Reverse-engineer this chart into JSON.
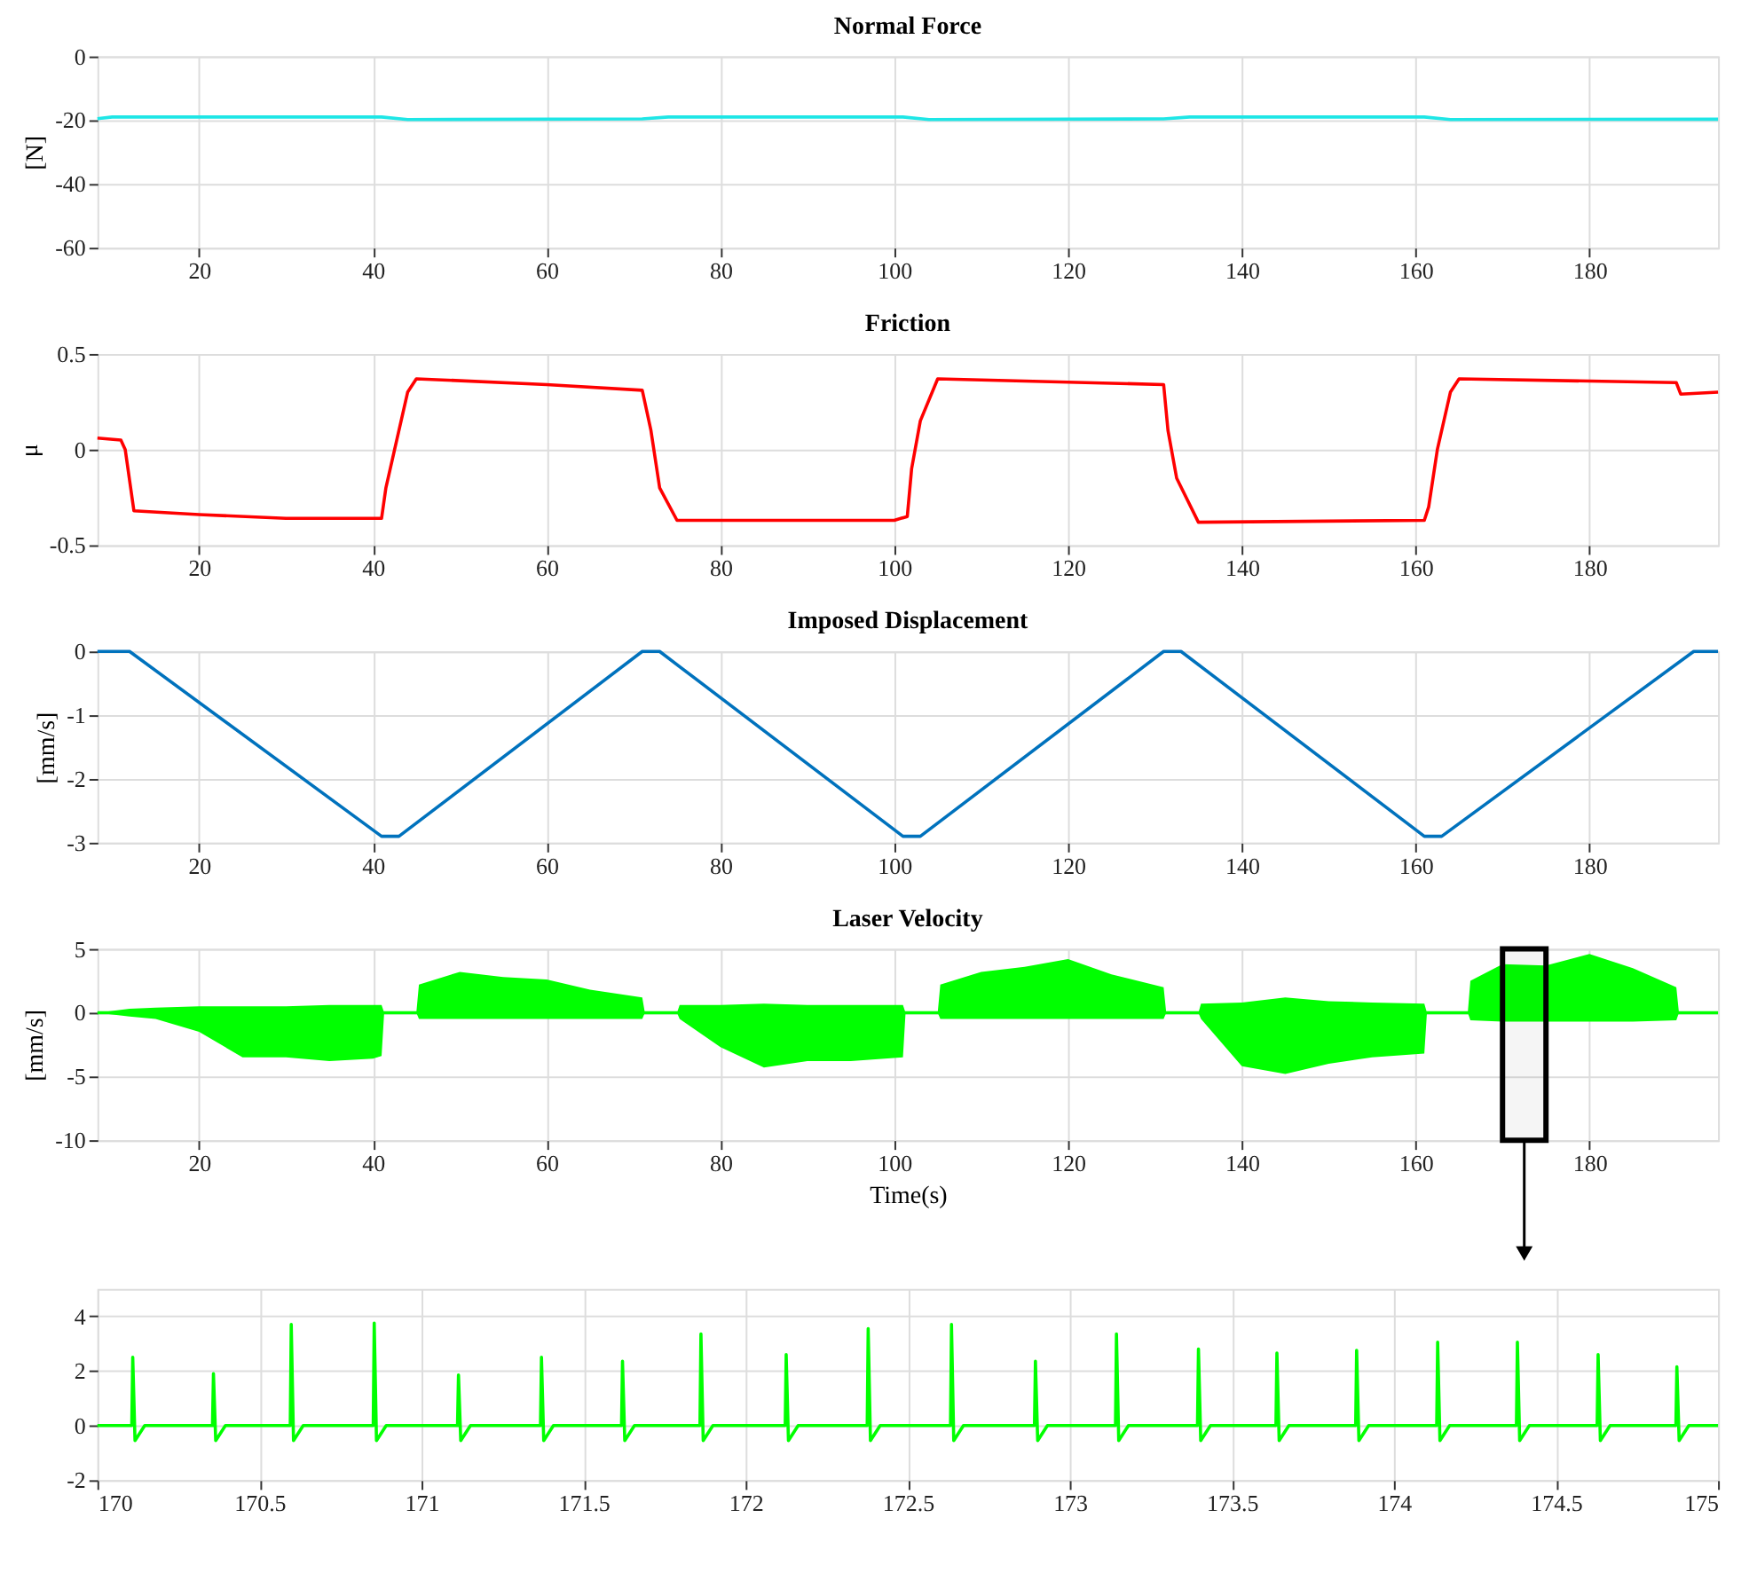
{
  "chart_data": [
    {
      "type": "line",
      "title": "Normal Force",
      "ylabel": "[N]",
      "xlim": [
        8.3,
        194.8
      ],
      "xticks": [
        20,
        40,
        60,
        80,
        100,
        120,
        140,
        160,
        180
      ],
      "ylim": [
        -60,
        0
      ],
      "yticks": [
        -60,
        -40,
        -20,
        0
      ],
      "grid": true,
      "x": [
        8.3,
        10,
        41,
        44,
        71,
        74,
        101,
        104,
        131,
        134,
        161,
        164,
        194.8
      ],
      "series": [
        {
          "color": "#1ee6e6",
          "values": [
            -19.5,
            -19,
            -19,
            -19.8,
            -19.6,
            -19,
            -19,
            -19.8,
            -19.6,
            -19,
            -19,
            -19.8,
            -19.7
          ]
        }
      ]
    },
    {
      "type": "line",
      "title": "Friction",
      "ylabel": "μ",
      "xlim": [
        8.3,
        194.8
      ],
      "xticks": [
        20,
        40,
        60,
        80,
        100,
        120,
        140,
        160,
        180
      ],
      "ylim": [
        -0.5,
        0.5
      ],
      "yticks": [
        -0.5,
        0,
        0.5
      ],
      "grid": true,
      "x": [
        8.3,
        11,
        11.5,
        12.5,
        20,
        30,
        41,
        41.5,
        42.5,
        44,
        45,
        60,
        71,
        72,
        73,
        75,
        100,
        101.5,
        102,
        103,
        105,
        131,
        131.5,
        132.5,
        135,
        161,
        161.5,
        162.5,
        164,
        165,
        190,
        190.5,
        194.8
      ],
      "series": [
        {
          "color": "#ff0000",
          "values": [
            0.06,
            0.05,
            0,
            -0.32,
            -0.34,
            -0.36,
            -0.36,
            -0.2,
            0,
            0.3,
            0.37,
            0.34,
            0.31,
            0.1,
            -0.2,
            -0.37,
            -0.37,
            -0.35,
            -0.1,
            0.15,
            0.37,
            0.34,
            0.1,
            -0.15,
            -0.38,
            -0.37,
            -0.3,
            0,
            0.3,
            0.37,
            0.35,
            0.29,
            0.3
          ]
        }
      ]
    },
    {
      "type": "line",
      "title": "Imposed Displacement",
      "ylabel": "[mm/s]",
      "xlim": [
        8.3,
        194.8
      ],
      "xticks": [
        20,
        40,
        60,
        80,
        100,
        120,
        140,
        160,
        180
      ],
      "ylim": [
        -3,
        0
      ],
      "yticks": [
        -3,
        -2,
        -1,
        0
      ],
      "grid": true,
      "x": [
        8.3,
        12,
        41,
        43,
        71,
        73,
        101,
        103,
        131,
        133,
        161,
        163,
        192,
        194.8
      ],
      "series": [
        {
          "color": "#0072bd",
          "values": [
            0,
            0,
            -2.9,
            -2.9,
            0,
            0,
            -2.9,
            -2.9,
            0,
            0,
            -2.9,
            -2.9,
            0,
            0
          ]
        }
      ]
    },
    {
      "type": "line",
      "title": "Laser Velocity",
      "xlabel": "Time(s)",
      "ylabel": "[mm/s]",
      "xlim": [
        8.3,
        194.8
      ],
      "xticks": [
        20,
        40,
        60,
        80,
        100,
        120,
        140,
        160,
        180
      ],
      "ylim": [
        -10,
        5
      ],
      "yticks": [
        -10,
        -5,
        0,
        5
      ],
      "grid": true,
      "bands": [
        {
          "axis": "x",
          "from": 170,
          "to": 175,
          "color": "#000000"
        }
      ],
      "x": [
        8.3,
        12,
        15,
        20,
        25,
        30,
        35,
        40,
        41,
        41.3,
        45,
        45.3,
        50,
        55,
        60,
        65,
        71,
        71.3,
        75,
        75.3,
        80,
        85,
        90,
        95,
        101,
        101.3,
        105,
        105.3,
        110,
        115,
        120,
        125,
        131,
        131.3,
        135,
        135.3,
        140,
        145,
        150,
        155,
        161,
        161.3,
        166,
        166.3,
        170,
        175,
        180,
        185,
        190,
        190.3,
        194.8
      ],
      "series": [
        {
          "color": "#00ff00",
          "values": [
            0,
            0,
            0,
            0,
            0,
            0,
            0,
            0,
            0,
            0,
            0,
            0,
            0,
            0,
            0,
            0,
            0,
            0,
            0,
            0,
            0,
            0,
            0,
            0,
            0,
            0,
            0,
            0,
            0,
            0,
            0,
            0,
            0,
            0,
            0,
            0,
            0,
            0,
            0,
            0,
            0,
            0,
            0,
            0,
            0,
            0,
            0,
            0,
            0,
            0,
            0
          ],
          "upper": [
            0,
            0.3,
            0.4,
            0.5,
            0.5,
            0.5,
            0.6,
            0.6,
            0.6,
            0,
            0,
            2.2,
            3.2,
            2.8,
            2.6,
            1.8,
            1.2,
            0,
            0,
            0.6,
            0.6,
            0.7,
            0.6,
            0.6,
            0.6,
            0,
            0,
            2.2,
            3.2,
            3.6,
            4.2,
            3,
            2,
            0,
            0,
            0.7,
            0.8,
            1.2,
            0.9,
            0.8,
            0.7,
            0,
            0,
            2.5,
            3.8,
            3.7,
            4.6,
            3.5,
            2,
            0,
            0
          ],
          "lower": [
            0,
            -0.3,
            -0.5,
            -1.5,
            -3.5,
            -3.5,
            -3.8,
            -3.6,
            -3.4,
            0,
            0,
            -0.5,
            -0.5,
            -0.5,
            -0.5,
            -0.5,
            -0.5,
            0,
            0,
            -0.5,
            -2.7,
            -4.3,
            -3.8,
            -3.8,
            -3.5,
            0,
            0,
            -0.5,
            -0.5,
            -0.5,
            -0.5,
            -0.5,
            -0.5,
            0,
            0,
            -0.5,
            -4.2,
            -4.8,
            -4,
            -3.5,
            -3.2,
            0,
            0,
            -0.6,
            -0.7,
            -0.7,
            -0.7,
            -0.7,
            -0.6,
            0,
            0
          ]
        }
      ]
    },
    {
      "type": "line",
      "xlim": [
        170,
        175
      ],
      "xticks": [
        170,
        170.5,
        171,
        171.5,
        172,
        172.5,
        173,
        173.5,
        174,
        174.5,
        175
      ],
      "ylim": [
        -2,
        5
      ],
      "yticks": [
        -2,
        0,
        2,
        4
      ],
      "grid": true,
      "x": [
        170,
        170.106,
        170.109,
        170.116,
        170.146,
        170.355,
        170.358,
        170.365,
        170.395,
        170.595,
        170.598,
        170.605,
        170.635,
        170.851,
        170.854,
        170.861,
        170.891,
        171.111,
        171.114,
        171.121,
        171.151,
        171.367,
        171.37,
        171.377,
        171.407,
        171.617,
        171.62,
        171.627,
        171.657,
        171.859,
        171.862,
        171.869,
        171.899,
        172.122,
        172.125,
        172.132,
        172.162,
        172.375,
        172.378,
        172.385,
        172.415,
        172.632,
        172.635,
        172.642,
        172.672,
        172.891,
        172.894,
        172.901,
        172.931,
        173.141,
        173.144,
        173.151,
        173.181,
        173.394,
        173.397,
        173.404,
        173.434,
        173.636,
        173.639,
        173.646,
        173.676,
        173.882,
        173.885,
        173.892,
        173.922,
        174.132,
        174.135,
        174.142,
        174.172,
        174.378,
        174.381,
        174.388,
        174.418,
        174.627,
        174.63,
        174.637,
        174.667,
        174.87,
        174.873,
        174.88,
        174.91,
        175
      ],
      "series": [
        {
          "color": "#00ff00",
          "values": [
            0,
            0,
            2.5,
            -0.55,
            0,
            0,
            1.9,
            -0.55,
            0,
            0,
            3.7,
            -0.55,
            0,
            0,
            3.75,
            -0.55,
            0,
            0,
            1.85,
            -0.55,
            0,
            0,
            2.5,
            -0.55,
            0,
            0,
            2.35,
            -0.55,
            0,
            0,
            3.35,
            -0.55,
            0,
            0,
            2.6,
            -0.55,
            0,
            0,
            3.55,
            -0.55,
            0,
            0,
            3.7,
            -0.55,
            0,
            0,
            2.35,
            -0.55,
            0,
            0,
            3.35,
            -0.55,
            0,
            0,
            2.8,
            -0.55,
            0,
            0,
            2.65,
            -0.55,
            0,
            0,
            2.75,
            -0.55,
            0,
            0,
            3.05,
            -0.55,
            0,
            0,
            3.05,
            -0.55,
            0,
            0,
            2.6,
            -0.55,
            0,
            0,
            2.15,
            -0.55,
            0,
            0
          ]
        }
      ]
    }
  ]
}
